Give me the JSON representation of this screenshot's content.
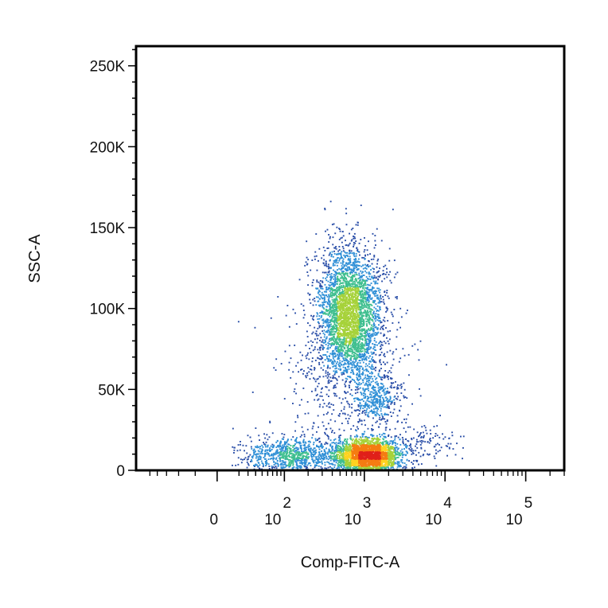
{
  "chart_data": {
    "type": "scatter",
    "style": "flow-cytometry-density-dot-plot",
    "xlabel": "Comp-FITC-A",
    "ylabel": "SSC-A",
    "x_scale": "biexponential",
    "x_range": [
      -150,
      300000
    ],
    "y_scale": "linear",
    "y_range": [
      0,
      262144
    ],
    "x_ticks": [
      {
        "value": 0,
        "base": "0",
        "exp": ""
      },
      {
        "value": 100,
        "base": "10",
        "exp": "2"
      },
      {
        "value": 1000,
        "base": "10",
        "exp": "3"
      },
      {
        "value": 10000,
        "base": "10",
        "exp": "4"
      },
      {
        "value": 100000,
        "base": "10",
        "exp": "5"
      }
    ],
    "y_ticks": [
      {
        "value": 0,
        "label": "0"
      },
      {
        "value": 50000,
        "label": "50K"
      },
      {
        "value": 100000,
        "label": "100K"
      },
      {
        "value": 150000,
        "label": "150K"
      },
      {
        "value": 200000,
        "label": "200K"
      },
      {
        "value": 250000,
        "label": "250K"
      }
    ],
    "populations": [
      {
        "x_center": 650,
        "y_center": 97000,
        "x_spread_decades": 0.2,
        "y_spread": 20000,
        "count": 3200
      },
      {
        "x_center": 1100,
        "y_center": 9000,
        "x_spread_decades": 0.2,
        "y_spread": 5500,
        "count": 2600
      },
      {
        "x_center": 1400,
        "y_center": 44000,
        "x_spread_decades": 0.14,
        "y_spread": 8500,
        "count": 360
      },
      {
        "x_center": 130,
        "y_center": 10000,
        "x_spread_decades": 0.35,
        "y_spread": 6000,
        "count": 900
      },
      {
        "x_center": 600,
        "y_center": 60000,
        "x_spread_decades": 0.4,
        "y_spread": 30000,
        "count": 600
      },
      {
        "x_center": 5500,
        "y_center": 18000,
        "x_spread_decades": 0.22,
        "y_spread": 6000,
        "count": 120
      }
    ],
    "density_colors": [
      "#2b4fa8",
      "#2f8fd6",
      "#3fbf8f",
      "#a6d23a",
      "#ffd21f",
      "#f57c12",
      "#e0201a"
    ],
    "grid": false,
    "legend": "none"
  }
}
